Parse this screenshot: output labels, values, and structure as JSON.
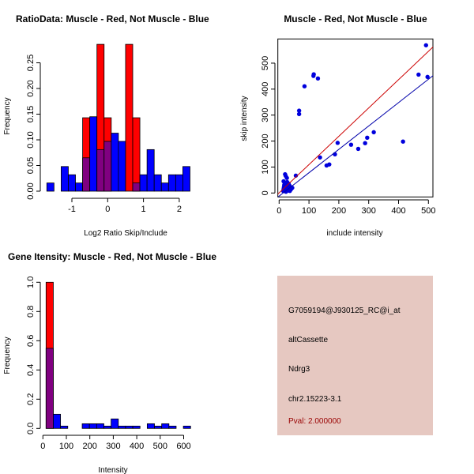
{
  "colors": {
    "red": "#ff0000",
    "blue": "#0000ff",
    "overlap": "#800080",
    "panel_bg": "#e6c8c1",
    "pval": "#990000",
    "scatter_points": "#0000dd",
    "red_line": "#cc0000",
    "blue_line": "#0000aa"
  },
  "chart_data": [
    {
      "type": "bar",
      "title": "RatioData: Muscle - Red, Not Muscle - Blue",
      "xlabel": "Log2 Ratio Skip/Include",
      "ylabel": "Frequency",
      "bin_start": -1.7,
      "bin_width": 0.2,
      "xticks": [
        "-1",
        "0",
        "1",
        "2"
      ],
      "xtick_values": [
        -1,
        0,
        1,
        2
      ],
      "yticks": [
        "0.00",
        "0.05",
        "0.10",
        "0.15",
        "0.20",
        "0.25"
      ],
      "ytick_values": [
        0,
        0.05,
        0.1,
        0.15,
        0.2,
        0.25
      ],
      "series": [
        {
          "name": "Not Muscle",
          "color": "blue",
          "values": [
            0.016,
            0,
            0.048,
            0.032,
            0.016,
            0.065,
            0.145,
            0.081,
            0.097,
            0.113,
            0.097,
            0,
            0.016,
            0.032,
            0.081,
            0.032,
            0.016,
            0.032,
            0.032,
            0.048
          ]
        },
        {
          "name": "Muscle",
          "color": "red",
          "values": [
            0,
            0,
            0,
            0,
            0,
            0.143,
            0,
            0.286,
            0.143,
            0,
            0,
            0.286,
            0.143,
            0,
            0,
            0,
            0,
            0,
            0,
            0
          ]
        }
      ]
    },
    {
      "type": "scatter",
      "title": "Muscle - Red, Not Muscle - Blue",
      "xlabel": "include intensity",
      "ylabel": "skip intensity",
      "xticks": [
        "0",
        "100",
        "200",
        "300",
        "400",
        "500"
      ],
      "xtick_values": [
        0,
        100,
        200,
        300,
        400,
        500
      ],
      "yticks": [
        "0",
        "100",
        "200",
        "300",
        "400",
        "500"
      ],
      "ytick_values": [
        0,
        100,
        200,
        300,
        400,
        500
      ],
      "points": [
        [
          492,
          569
        ],
        [
          467,
          456
        ],
        [
          497,
          447
        ],
        [
          116,
          457
        ],
        [
          115,
          451
        ],
        [
          130,
          441
        ],
        [
          85,
          411
        ],
        [
          67,
          317
        ],
        [
          67,
          304
        ],
        [
          56,
          67
        ],
        [
          137,
          137
        ],
        [
          196,
          193
        ],
        [
          187,
          149
        ],
        [
          159,
          106
        ],
        [
          168,
          110
        ],
        [
          241,
          186
        ],
        [
          265,
          170
        ],
        [
          288,
          192
        ],
        [
          295,
          213
        ],
        [
          317,
          234
        ],
        [
          415,
          198
        ],
        [
          20,
          72
        ],
        [
          22,
          66
        ],
        [
          26,
          58
        ],
        [
          15,
          45
        ],
        [
          18,
          40
        ],
        [
          22,
          38
        ],
        [
          25,
          35
        ],
        [
          30,
          30
        ],
        [
          35,
          28
        ],
        [
          40,
          22
        ],
        [
          42,
          18
        ],
        [
          38,
          12
        ],
        [
          33,
          15
        ],
        [
          28,
          20
        ],
        [
          20,
          25
        ],
        [
          17,
          30
        ],
        [
          15,
          15
        ],
        [
          14,
          8
        ],
        [
          18,
          10
        ],
        [
          24,
          12
        ],
        [
          30,
          10
        ],
        [
          36,
          8
        ],
        [
          27,
          42
        ],
        [
          32,
          36
        ],
        [
          40,
          15
        ],
        [
          44,
          20
        ],
        [
          19,
          18
        ],
        [
          23,
          5
        ],
        [
          16,
          22
        ]
      ],
      "lines": [
        {
          "name": "Muscle fit",
          "color": "red_line",
          "intercept": 0.5,
          "slope": 1.09
        },
        {
          "name": "Not Muscle fit",
          "color": "blue_line",
          "intercept": -12,
          "slope": 0.9
        }
      ]
    },
    {
      "type": "bar",
      "title": "Gene Itensity: Muscle - Red, Not Muscle - Blue",
      "xlabel": "Intensity",
      "ylabel": "Frequency",
      "bin_start": 13.5,
      "bin_width": 30.8,
      "xticks": [
        "0",
        "100",
        "200",
        "300",
        "400",
        "500",
        "600"
      ],
      "xtick_values": [
        0,
        100,
        200,
        300,
        400,
        500,
        600
      ],
      "yticks": [
        "0.0",
        "0.2",
        "0.4",
        "0.6",
        "0.8",
        "1.0"
      ],
      "ytick_values": [
        0,
        0.2,
        0.4,
        0.6,
        0.8,
        1.0
      ],
      "series": [
        {
          "name": "Not Muscle",
          "color": "blue",
          "values": [
            0.548,
            0.097,
            0.016,
            0,
            0,
            0.032,
            0.032,
            0.032,
            0.016,
            0.065,
            0.016,
            0.016,
            0.016,
            0,
            0.032,
            0.016,
            0.032,
            0.016,
            0,
            0.016
          ]
        },
        {
          "name": "Muscle",
          "color": "red",
          "values": [
            1.0,
            0,
            0,
            0,
            0,
            0,
            0,
            0,
            0,
            0,
            0,
            0,
            0,
            0,
            0,
            0,
            0,
            0,
            0,
            0
          ]
        }
      ]
    }
  ],
  "info_panel": {
    "probe_id": "G7059194@J930125_RC@i_at",
    "event_type": "altCassette",
    "gene": "Ndrg3",
    "location": "chr2.15223-3.1",
    "pval": "Pval: 2.000000"
  }
}
